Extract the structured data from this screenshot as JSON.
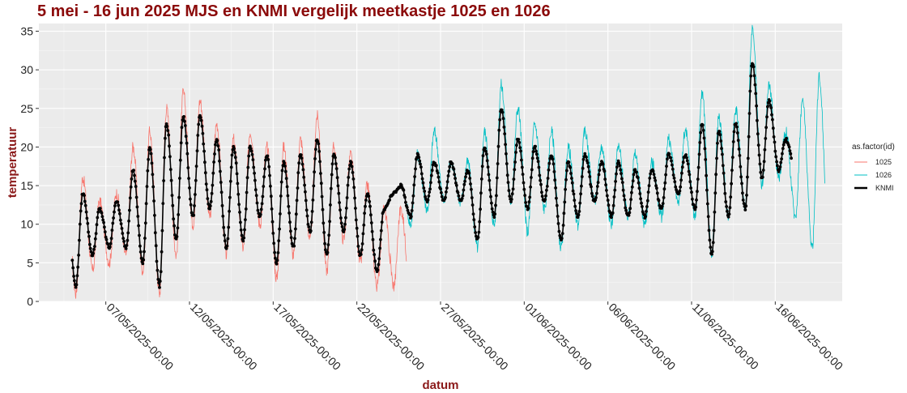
{
  "chart_data": {
    "type": "line",
    "title": "5 mei - 16 jun 2025 MJS en KNMI vergelijk meetkastje 1025 en 1026",
    "xlabel": "datum",
    "ylabel": "temperatuur",
    "ylim": [
      0,
      36
    ],
    "xlim": [
      "2025-05-03",
      "2025-06-20"
    ],
    "yticks": [
      0,
      5,
      10,
      15,
      20,
      25,
      30,
      35
    ],
    "xticks": [
      {
        "date": "2025-05-07",
        "label": "07/05/2025-00:00"
      },
      {
        "date": "2025-05-12",
        "label": "12/05/2025-00:00"
      },
      {
        "date": "2025-05-17",
        "label": "17/05/2025-00:00"
      },
      {
        "date": "2025-05-22",
        "label": "22/05/2025-00:00"
      },
      {
        "date": "2025-05-27",
        "label": "27/05/2025-00:00"
      },
      {
        "date": "2025-06-01",
        "label": "01/06/2025-00:00"
      },
      {
        "date": "2025-06-06",
        "label": "06/06/2025-00:00"
      },
      {
        "date": "2025-06-11",
        "label": "11/06/2025-00:00"
      },
      {
        "date": "2025-06-16",
        "label": "16/06/2025-00:00"
      }
    ],
    "grid": true,
    "legend_placement": "right",
    "legend": {
      "title": "as.factor(id)",
      "entries": [
        "1025",
        "1026",
        "KNMI"
      ]
    },
    "series": [
      {
        "name": "1025",
        "color": "#f8766d",
        "start": "2025-05-05",
        "end": "2025-05-24",
        "daily_min": [
          1,
          4,
          5,
          6,
          4,
          1,
          6,
          10,
          11,
          6,
          7,
          10,
          3,
          6,
          8,
          4,
          8,
          5,
          2
        ],
        "daily_max": [
          16,
          13,
          14,
          20,
          22,
          25,
          27,
          26,
          23,
          21,
          22,
          20,
          20,
          21,
          24,
          20,
          19,
          15,
          12
        ]
      },
      {
        "name": "1026",
        "color": "#00bfc4",
        "start": "2025-05-25",
        "end": "2025-06-18",
        "daily_min": [
          10,
          12,
          13,
          13,
          7,
          10,
          13,
          9,
          12,
          7,
          10,
          13,
          10,
          11,
          10,
          11,
          13,
          11,
          6,
          11,
          12,
          15,
          16,
          11,
          7
        ],
        "daily_max": [
          19,
          22,
          18,
          18,
          22,
          28,
          25,
          23,
          22,
          20,
          22,
          20,
          20,
          19,
          18,
          21,
          22,
          27,
          24,
          25,
          35,
          28,
          22,
          26,
          29
        ]
      },
      {
        "name": "KNMI",
        "color": "#000000",
        "start": "2025-05-05",
        "end": "2025-06-16",
        "daily_min": [
          2,
          6,
          7,
          7,
          5,
          2,
          8,
          11,
          12,
          7,
          8,
          11,
          5,
          7,
          9,
          6,
          9,
          6,
          4,
          14,
          11,
          13,
          13,
          13,
          8,
          11,
          13,
          12,
          13,
          8,
          11,
          13,
          11,
          11,
          11,
          12,
          14,
          12,
          6,
          11,
          12,
          16,
          17
        ],
        "daily_max": [
          14,
          12,
          13,
          17,
          20,
          23,
          24,
          24,
          21,
          20,
          20,
          19,
          18,
          19,
          21,
          19,
          18,
          14,
          12,
          15,
          19,
          18,
          18,
          17,
          20,
          25,
          21,
          20,
          19,
          18,
          19,
          18,
          18,
          17,
          17,
          19,
          19,
          23,
          22,
          23,
          31,
          26,
          21
        ]
      }
    ]
  }
}
